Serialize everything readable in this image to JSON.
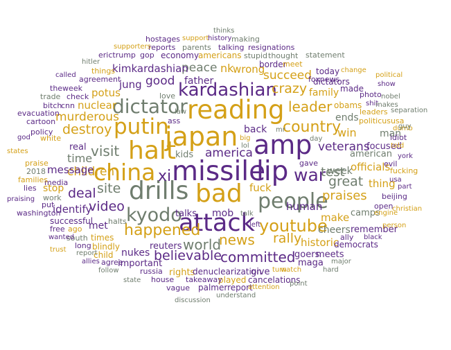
{
  "colors": {
    "gold": "#d4a017",
    "purple": "#5b2a86",
    "slate": "#6f7d6e",
    "gray": "#9e9e9e"
  },
  "words": [
    {
      "text": "missile",
      "weight": 1.0,
      "color": 1
    },
    {
      "text": "lip",
      "weight": 1.0,
      "color": 1
    },
    {
      "text": "japan",
      "weight": 0.98,
      "color": 0
    },
    {
      "text": "amp",
      "weight": 0.97,
      "color": 1
    },
    {
      "text": "reading",
      "weight": 0.95,
      "color": 0
    },
    {
      "text": "halt",
      "weight": 0.92,
      "color": 0
    },
    {
      "text": "drills",
      "weight": 0.92,
      "color": 2
    },
    {
      "text": "bad",
      "weight": 0.9,
      "color": 0
    },
    {
      "text": "attack",
      "weight": 0.88,
      "color": 1
    },
    {
      "text": "china",
      "weight": 0.8,
      "color": 0
    },
    {
      "text": "putin",
      "weight": 0.76,
      "color": 0
    },
    {
      "text": "people",
      "weight": 0.72,
      "color": 2
    },
    {
      "text": "dictator",
      "weight": 0.66,
      "color": 2
    },
    {
      "text": "kardashian",
      "weight": 0.6,
      "color": 1
    },
    {
      "text": "kyodo",
      "weight": 0.62,
      "color": 2
    },
    {
      "text": "youtube",
      "weight": 0.52,
      "color": 0
    },
    {
      "text": "war",
      "weight": 0.55,
      "color": 1
    },
    {
      "text": "country",
      "weight": 0.46,
      "color": 0
    },
    {
      "text": "happened",
      "weight": 0.46,
      "color": 0
    },
    {
      "text": "xi",
      "weight": 0.46,
      "color": 1
    },
    {
      "text": "visit",
      "weight": 0.42,
      "color": 2
    },
    {
      "text": "world",
      "weight": 0.4,
      "color": 2
    },
    {
      "text": "leader",
      "weight": 0.4,
      "color": 0
    },
    {
      "text": "crazy",
      "weight": 0.38,
      "color": 0
    },
    {
      "text": "destroy",
      "weight": 0.38,
      "color": 0
    },
    {
      "text": "news",
      "weight": 0.4,
      "color": 0
    },
    {
      "text": "committed",
      "weight": 0.4,
      "color": 1
    },
    {
      "text": "believable",
      "weight": 0.38,
      "color": 1
    },
    {
      "text": "site",
      "weight": 0.38,
      "color": 2
    },
    {
      "text": "video",
      "weight": 0.38,
      "color": 1
    },
    {
      "text": "deal",
      "weight": 0.36,
      "color": 1
    },
    {
      "text": "rally",
      "weight": 0.36,
      "color": 0
    },
    {
      "text": "great",
      "weight": 0.36,
      "color": 2
    },
    {
      "text": "test",
      "weight": 0.34,
      "color": 2
    },
    {
      "text": "praises",
      "weight": 0.34,
      "color": 0
    },
    {
      "text": "children",
      "weight": 0.32,
      "color": 0
    },
    {
      "text": "america",
      "weight": 0.3,
      "color": 1
    },
    {
      "text": "veterans",
      "weight": 0.3,
      "color": 1
    },
    {
      "text": "good",
      "weight": 0.3,
      "color": 1
    },
    {
      "text": "peace",
      "weight": 0.3,
      "color": 2
    },
    {
      "text": "succeed",
      "weight": 0.3,
      "color": 0
    },
    {
      "text": "murderous",
      "weight": 0.3,
      "color": 0
    },
    {
      "text": "time",
      "weight": 0.28,
      "color": 2
    },
    {
      "text": "win",
      "weight": 0.28,
      "color": 0
    },
    {
      "text": "nk",
      "weight": 0.28,
      "color": 0
    },
    {
      "text": "wrong",
      "weight": 0.26,
      "color": 0
    },
    {
      "text": "make",
      "weight": 0.26,
      "color": 0
    },
    {
      "text": "kimkardashian",
      "weight": 0.24,
      "color": 1
    },
    {
      "text": "jung",
      "weight": 0.24,
      "color": 1
    },
    {
      "text": "potus",
      "weight": 0.24,
      "color": 0
    },
    {
      "text": "nuclear",
      "weight": 0.24,
      "color": 0
    },
    {
      "text": "message",
      "weight": 0.24,
      "color": 1
    },
    {
      "text": "identify",
      "weight": 0.24,
      "color": 1
    },
    {
      "text": "historic",
      "weight": 0.24,
      "color": 0
    },
    {
      "text": "human",
      "weight": 0.24,
      "color": 1
    },
    {
      "text": "officials",
      "weight": 0.24,
      "color": 0
    },
    {
      "text": "thing",
      "weight": 0.24,
      "color": 0
    },
    {
      "text": "fuck",
      "weight": 0.24,
      "color": 0
    },
    {
      "text": "nukes",
      "weight": 0.22,
      "color": 1
    },
    {
      "text": "met",
      "weight": 0.22,
      "color": 1
    },
    {
      "text": "stop",
      "weight": 0.22,
      "color": 0
    },
    {
      "text": "father",
      "weight": 0.22,
      "color": 1
    },
    {
      "text": "week",
      "weight": 0.22,
      "color": 2
    },
    {
      "text": "cheers",
      "weight": 0.22,
      "color": 2
    },
    {
      "text": "mob",
      "weight": 0.22,
      "color": 1
    },
    {
      "text": "family",
      "weight": 0.22,
      "color": 0
    },
    {
      "text": "ends",
      "weight": 0.22,
      "color": 2
    },
    {
      "text": "man",
      "weight": 0.22,
      "color": 2
    },
    {
      "text": "back",
      "weight": 0.22,
      "color": 1
    },
    {
      "text": "kids",
      "weight": 0.2,
      "color": 2
    },
    {
      "text": "camps",
      "weight": 0.2,
      "color": 2
    },
    {
      "text": "american",
      "weight": 0.2,
      "color": 2
    },
    {
      "text": "maga",
      "weight": 0.2,
      "color": 1
    },
    {
      "text": "important",
      "weight": 0.2,
      "color": 1
    },
    {
      "text": "talks",
      "weight": 0.18,
      "color": 1
    },
    {
      "text": "reuters",
      "weight": 0.18,
      "color": 1
    },
    {
      "text": "real",
      "weight": 0.18,
      "color": 1
    },
    {
      "text": "goers",
      "weight": 0.18,
      "color": 1
    },
    {
      "text": "meets",
      "weight": 0.18,
      "color": 1
    },
    {
      "text": "remember",
      "weight": 0.18,
      "color": 1
    },
    {
      "text": "focused",
      "weight": 0.18,
      "color": 1
    },
    {
      "text": "rights",
      "weight": 0.18,
      "color": 0
    },
    {
      "text": "give",
      "weight": 0.18,
      "color": 1
    },
    {
      "text": "obams",
      "weight": 0.16,
      "color": 0
    },
    {
      "text": "played",
      "weight": 0.16,
      "color": 0
    },
    {
      "text": "democrats",
      "weight": 0.16,
      "color": 1
    },
    {
      "text": "denuclearization",
      "weight": 0.16,
      "color": 1
    },
    {
      "text": "palmerreport",
      "weight": 0.16,
      "color": 1
    },
    {
      "text": "cancelations",
      "weight": 0.16,
      "color": 1
    },
    {
      "text": "economy",
      "weight": 0.16,
      "color": 1
    },
    {
      "text": "americans",
      "weight": 0.16,
      "color": 0
    },
    {
      "text": "border",
      "weight": 0.16,
      "color": 1
    },
    {
      "text": "times",
      "weight": 0.16,
      "color": 0
    },
    {
      "text": "blindly",
      "weight": 0.16,
      "color": 0
    },
    {
      "text": "child",
      "weight": 0.16,
      "color": 0
    },
    {
      "text": "successful",
      "weight": 0.16,
      "color": 1
    },
    {
      "text": "dictators",
      "weight": 0.16,
      "color": 1
    },
    {
      "text": "today",
      "weight": 0.16,
      "color": 1
    },
    {
      "text": "made",
      "weight": 0.16,
      "color": 1
    },
    {
      "text": "politicususa",
      "weight": 0.14,
      "color": 0
    },
    {
      "text": "photo",
      "weight": 0.14,
      "color": 1
    },
    {
      "text": "agreement",
      "weight": 0.14,
      "color": 1
    },
    {
      "text": "check",
      "weight": 0.14,
      "color": 1
    },
    {
      "text": "talking",
      "weight": 0.14,
      "color": 1
    },
    {
      "text": "resignations",
      "weight": 0.14,
      "color": 1
    },
    {
      "text": "parents",
      "weight": 0.14,
      "color": 2
    },
    {
      "text": "erictrump",
      "weight": 0.14,
      "color": 1
    },
    {
      "text": "hostages",
      "weight": 0.14,
      "color": 1
    },
    {
      "text": "reports",
      "weight": 0.14,
      "color": 1
    },
    {
      "text": "ally",
      "weight": 0.14,
      "color": 1
    },
    {
      "text": "white",
      "weight": 0.14,
      "color": 0
    },
    {
      "text": "media",
      "weight": 0.14,
      "color": 1
    },
    {
      "text": "washington",
      "weight": 0.14,
      "color": 1
    },
    {
      "text": "gave",
      "weight": 0.14,
      "color": 1
    },
    {
      "text": "idiot",
      "weight": 0.14,
      "color": 1
    },
    {
      "text": "fucking",
      "weight": 0.14,
      "color": 0
    },
    {
      "text": "evacuation",
      "weight": 0.14,
      "color": 1
    },
    {
      "text": "beijing",
      "weight": 0.12,
      "color": 1
    },
    {
      "text": "open",
      "weight": 0.12,
      "color": 1
    },
    {
      "text": "evil",
      "weight": 0.12,
      "color": 1
    },
    {
      "text": "free",
      "weight": 0.12,
      "color": 1
    },
    {
      "text": "work",
      "weight": 0.12,
      "color": 2
    },
    {
      "text": "policy",
      "weight": 0.12,
      "color": 1
    },
    {
      "text": "takeaway",
      "weight": 0.12,
      "color": 1
    },
    {
      "text": "vague",
      "weight": 0.12,
      "color": 1
    },
    {
      "text": "house",
      "weight": 0.12,
      "color": 1
    },
    {
      "text": "russia",
      "weight": 0.12,
      "color": 1
    },
    {
      "text": "cartoon",
      "weight": 0.12,
      "color": 1
    },
    {
      "text": "trade",
      "weight": 0.12,
      "color": 2
    },
    {
      "text": "leaders",
      "weight": 0.12,
      "color": 0
    },
    {
      "text": "making",
      "weight": 0.12,
      "color": 2
    },
    {
      "text": "stupid",
      "weight": 0.12,
      "color": 2
    },
    {
      "text": "gop",
      "weight": 0.12,
      "color": 1
    },
    {
      "text": "foxnews",
      "weight": 0.12,
      "color": 1
    },
    {
      "text": "statement",
      "weight": 0.12,
      "color": 2
    },
    {
      "text": "thought",
      "weight": 0.12,
      "color": 2
    },
    {
      "text": "love",
      "weight": 0.12,
      "color": 2
    },
    {
      "text": "ass",
      "weight": 0.12,
      "color": 1
    },
    {
      "text": "things",
      "weight": 0.12,
      "color": 0
    },
    {
      "text": "theweek",
      "weight": 0.12,
      "color": 1
    },
    {
      "text": "cnn",
      "weight": 0.12,
      "color": 1
    },
    {
      "text": "bitch",
      "weight": 0.12,
      "color": 1
    },
    {
      "text": "2018",
      "weight": 0.12,
      "color": 2
    },
    {
      "text": "praise",
      "weight": 0.12,
      "color": 0
    },
    {
      "text": "families",
      "weight": 0.12,
      "color": 0
    },
    {
      "text": "lies",
      "weight": 0.12,
      "color": 1
    },
    {
      "text": "put",
      "weight": 0.12,
      "color": 1
    },
    {
      "text": "ago",
      "weight": 0.12,
      "color": 0
    },
    {
      "text": "south",
      "weight": 0.12,
      "color": 2
    },
    {
      "text": "long",
      "weight": 0.12,
      "color": 1
    },
    {
      "text": "agree",
      "weight": 0.12,
      "color": 1
    },
    {
      "text": "halts",
      "weight": 0.12,
      "color": 2
    },
    {
      "text": "meet",
      "weight": 0.12,
      "color": 0
    },
    {
      "text": "show",
      "weight": 0.1,
      "color": 1
    },
    {
      "text": "shit",
      "weight": 0.1,
      "color": 1
    },
    {
      "text": "dumb",
      "weight": 0.1,
      "color": 0
    },
    {
      "text": "turn",
      "weight": 0.1,
      "color": 0
    },
    {
      "text": "watch",
      "weight": 0.1,
      "color": 0
    },
    {
      "text": "hard",
      "weight": 0.1,
      "color": 2
    },
    {
      "text": "major",
      "weight": 0.1,
      "color": 2
    },
    {
      "text": "black",
      "weight": 0.1,
      "color": 1
    },
    {
      "text": "point",
      "weight": 0.1,
      "color": 2
    },
    {
      "text": "attention",
      "weight": 0.1,
      "color": 0
    },
    {
      "text": "understand",
      "weight": 0.1,
      "color": 2
    },
    {
      "text": "discussion",
      "weight": 0.1,
      "color": 2
    },
    {
      "text": "state",
      "weight": 0.1,
      "color": 2
    },
    {
      "text": "follow",
      "weight": 0.1,
      "color": 2
    },
    {
      "text": "allies",
      "weight": 0.1,
      "color": 1
    },
    {
      "text": "report",
      "weight": 0.1,
      "color": 2
    },
    {
      "text": "wanted",
      "weight": 0.1,
      "color": 1
    },
    {
      "text": "trust",
      "weight": 0.1,
      "color": 0
    },
    {
      "text": "praising",
      "weight": 0.1,
      "color": 1
    },
    {
      "text": "god",
      "weight": 0.1,
      "color": 1
    },
    {
      "text": "states",
      "weight": 0.1,
      "color": 0
    },
    {
      "text": "hitler",
      "weight": 0.1,
      "color": 2
    },
    {
      "text": "called",
      "weight": 0.1,
      "color": 1
    },
    {
      "text": "supporters",
      "weight": 0.1,
      "color": 0
    },
    {
      "text": "support",
      "weight": 0.1,
      "color": 0
    },
    {
      "text": "history",
      "weight": 0.1,
      "color": 1
    },
    {
      "text": "thinks",
      "weight": 0.1,
      "color": 2
    },
    {
      "text": "change",
      "weight": 0.1,
      "color": 0
    },
    {
      "text": "political",
      "weight": 0.1,
      "color": 0
    },
    {
      "text": "nobel",
      "weight": 0.1,
      "color": 2
    },
    {
      "text": "makes",
      "weight": 0.1,
      "color": 2
    },
    {
      "text": "separation",
      "weight": 0.1,
      "color": 2
    },
    {
      "text": "guy",
      "weight": 0.1,
      "color": 2
    },
    {
      "text": "told",
      "weight": 0.1,
      "color": 0
    },
    {
      "text": "york",
      "weight": 0.1,
      "color": 1
    },
    {
      "text": "usa",
      "weight": 0.1,
      "color": 1
    },
    {
      "text": "part",
      "weight": 0.1,
      "color": 1
    },
    {
      "text": "christian",
      "weight": 0.1,
      "color": 0
    },
    {
      "text": "engine",
      "weight": 0.1,
      "color": 0
    },
    {
      "text": "person",
      "weight": 0.1,
      "color": 0
    },
    {
      "text": "big",
      "weight": 0.1,
      "color": 0
    },
    {
      "text": "lol",
      "weight": 0.1,
      "color": 2
    },
    {
      "text": "day",
      "weight": 0.1,
      "color": 2
    },
    {
      "text": "mr",
      "weight": 0.1,
      "color": 2
    },
    {
      "text": "law",
      "weight": 0.1,
      "color": 2
    },
    {
      "text": "talk",
      "weight": 0.1,
      "color": 2
    },
    {
      "text": "left",
      "weight": 0.1,
      "color": 1
    }
  ]
}
